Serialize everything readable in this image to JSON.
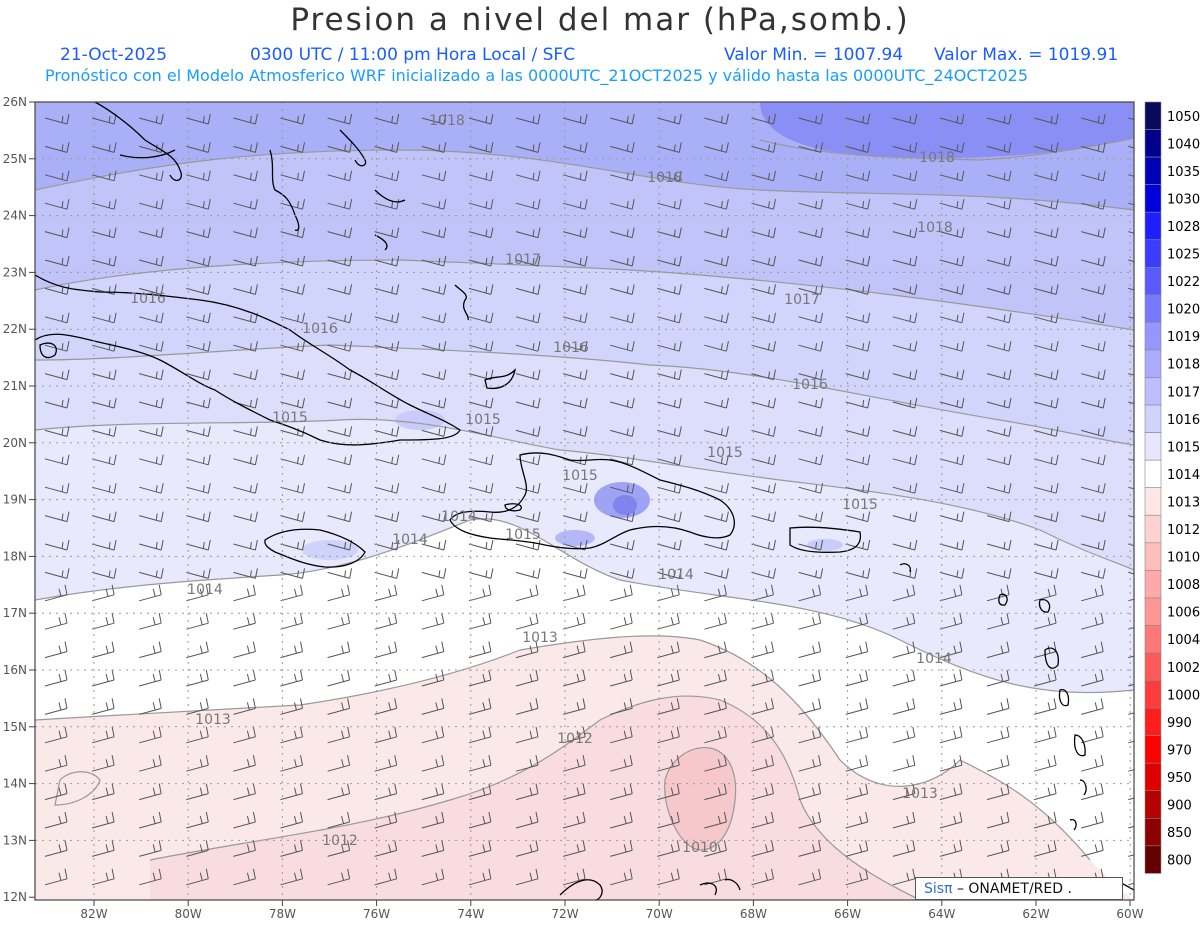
{
  "header": {
    "title": "Presion a nivel del mar (hPa,somb.)",
    "date": "21-Oct-2025",
    "time": "0300 UTC / 11:00 pm Hora Local / SFC",
    "min": "Valor Min. = 1007.94",
    "max": "Valor Max. = 1019.91",
    "forecast": "Pronóstico con el Modelo Atmosferico WRF inicializado a las 0000UTC_21OCT2025 y válido hasta las  0000UTC_24OCT2025"
  },
  "axes": {
    "lat_labels": [
      "26N",
      "25N",
      "24N",
      "23N",
      "22N",
      "21N",
      "20N",
      "19N",
      "18N",
      "17N",
      "16N",
      "15N",
      "14N",
      "13N",
      "12N"
    ],
    "lon_labels": [
      "82W",
      "80W",
      "78W",
      "76W",
      "74W",
      "72W",
      "70W",
      "68W",
      "66W",
      "64W",
      "62W",
      "60W"
    ]
  },
  "contour_labels": [
    "1018",
    "1018",
    "1018",
    "1018",
    "1017",
    "1017",
    "1016",
    "1016",
    "1016",
    "1016",
    "1015",
    "1015",
    "1015",
    "1015",
    "1015",
    "1015",
    "1014",
    "1014",
    "1014",
    "1014",
    "1014",
    "1013",
    "1013",
    "1013",
    "1012",
    "1012",
    "1010"
  ],
  "colorbar": {
    "labels": [
      "1050",
      "1040",
      "1035",
      "1030",
      "1028",
      "1025",
      "1022",
      "1020",
      "1019",
      "1018",
      "1017",
      "1016",
      "1015",
      "1014",
      "1013",
      "1012",
      "1010",
      "1008",
      "1006",
      "1004",
      "1002",
      "1000",
      "990",
      "970",
      "950",
      "900",
      "850",
      "800"
    ],
    "colors": [
      "#0a0a5c",
      "#00008c",
      "#0000b4",
      "#0000dc",
      "#1e1eff",
      "#3c3cff",
      "#5a5aff",
      "#7878ff",
      "#9696ff",
      "#aaaaff",
      "#bebeff",
      "#d2d2ff",
      "#e6e6ff",
      "#ffffff",
      "#ffe6e6",
      "#ffd2d2",
      "#ffbebe",
      "#ffaaaa",
      "#ff9696",
      "#ff7878",
      "#ff5a5a",
      "#ff3c3c",
      "#ff1e1e",
      "#ff0000",
      "#dc0000",
      "#b40000",
      "#8c0000",
      "#640000"
    ]
  },
  "credit": {
    "brand": "Sisπ",
    "org": "– ONAMET/RED  ."
  }
}
